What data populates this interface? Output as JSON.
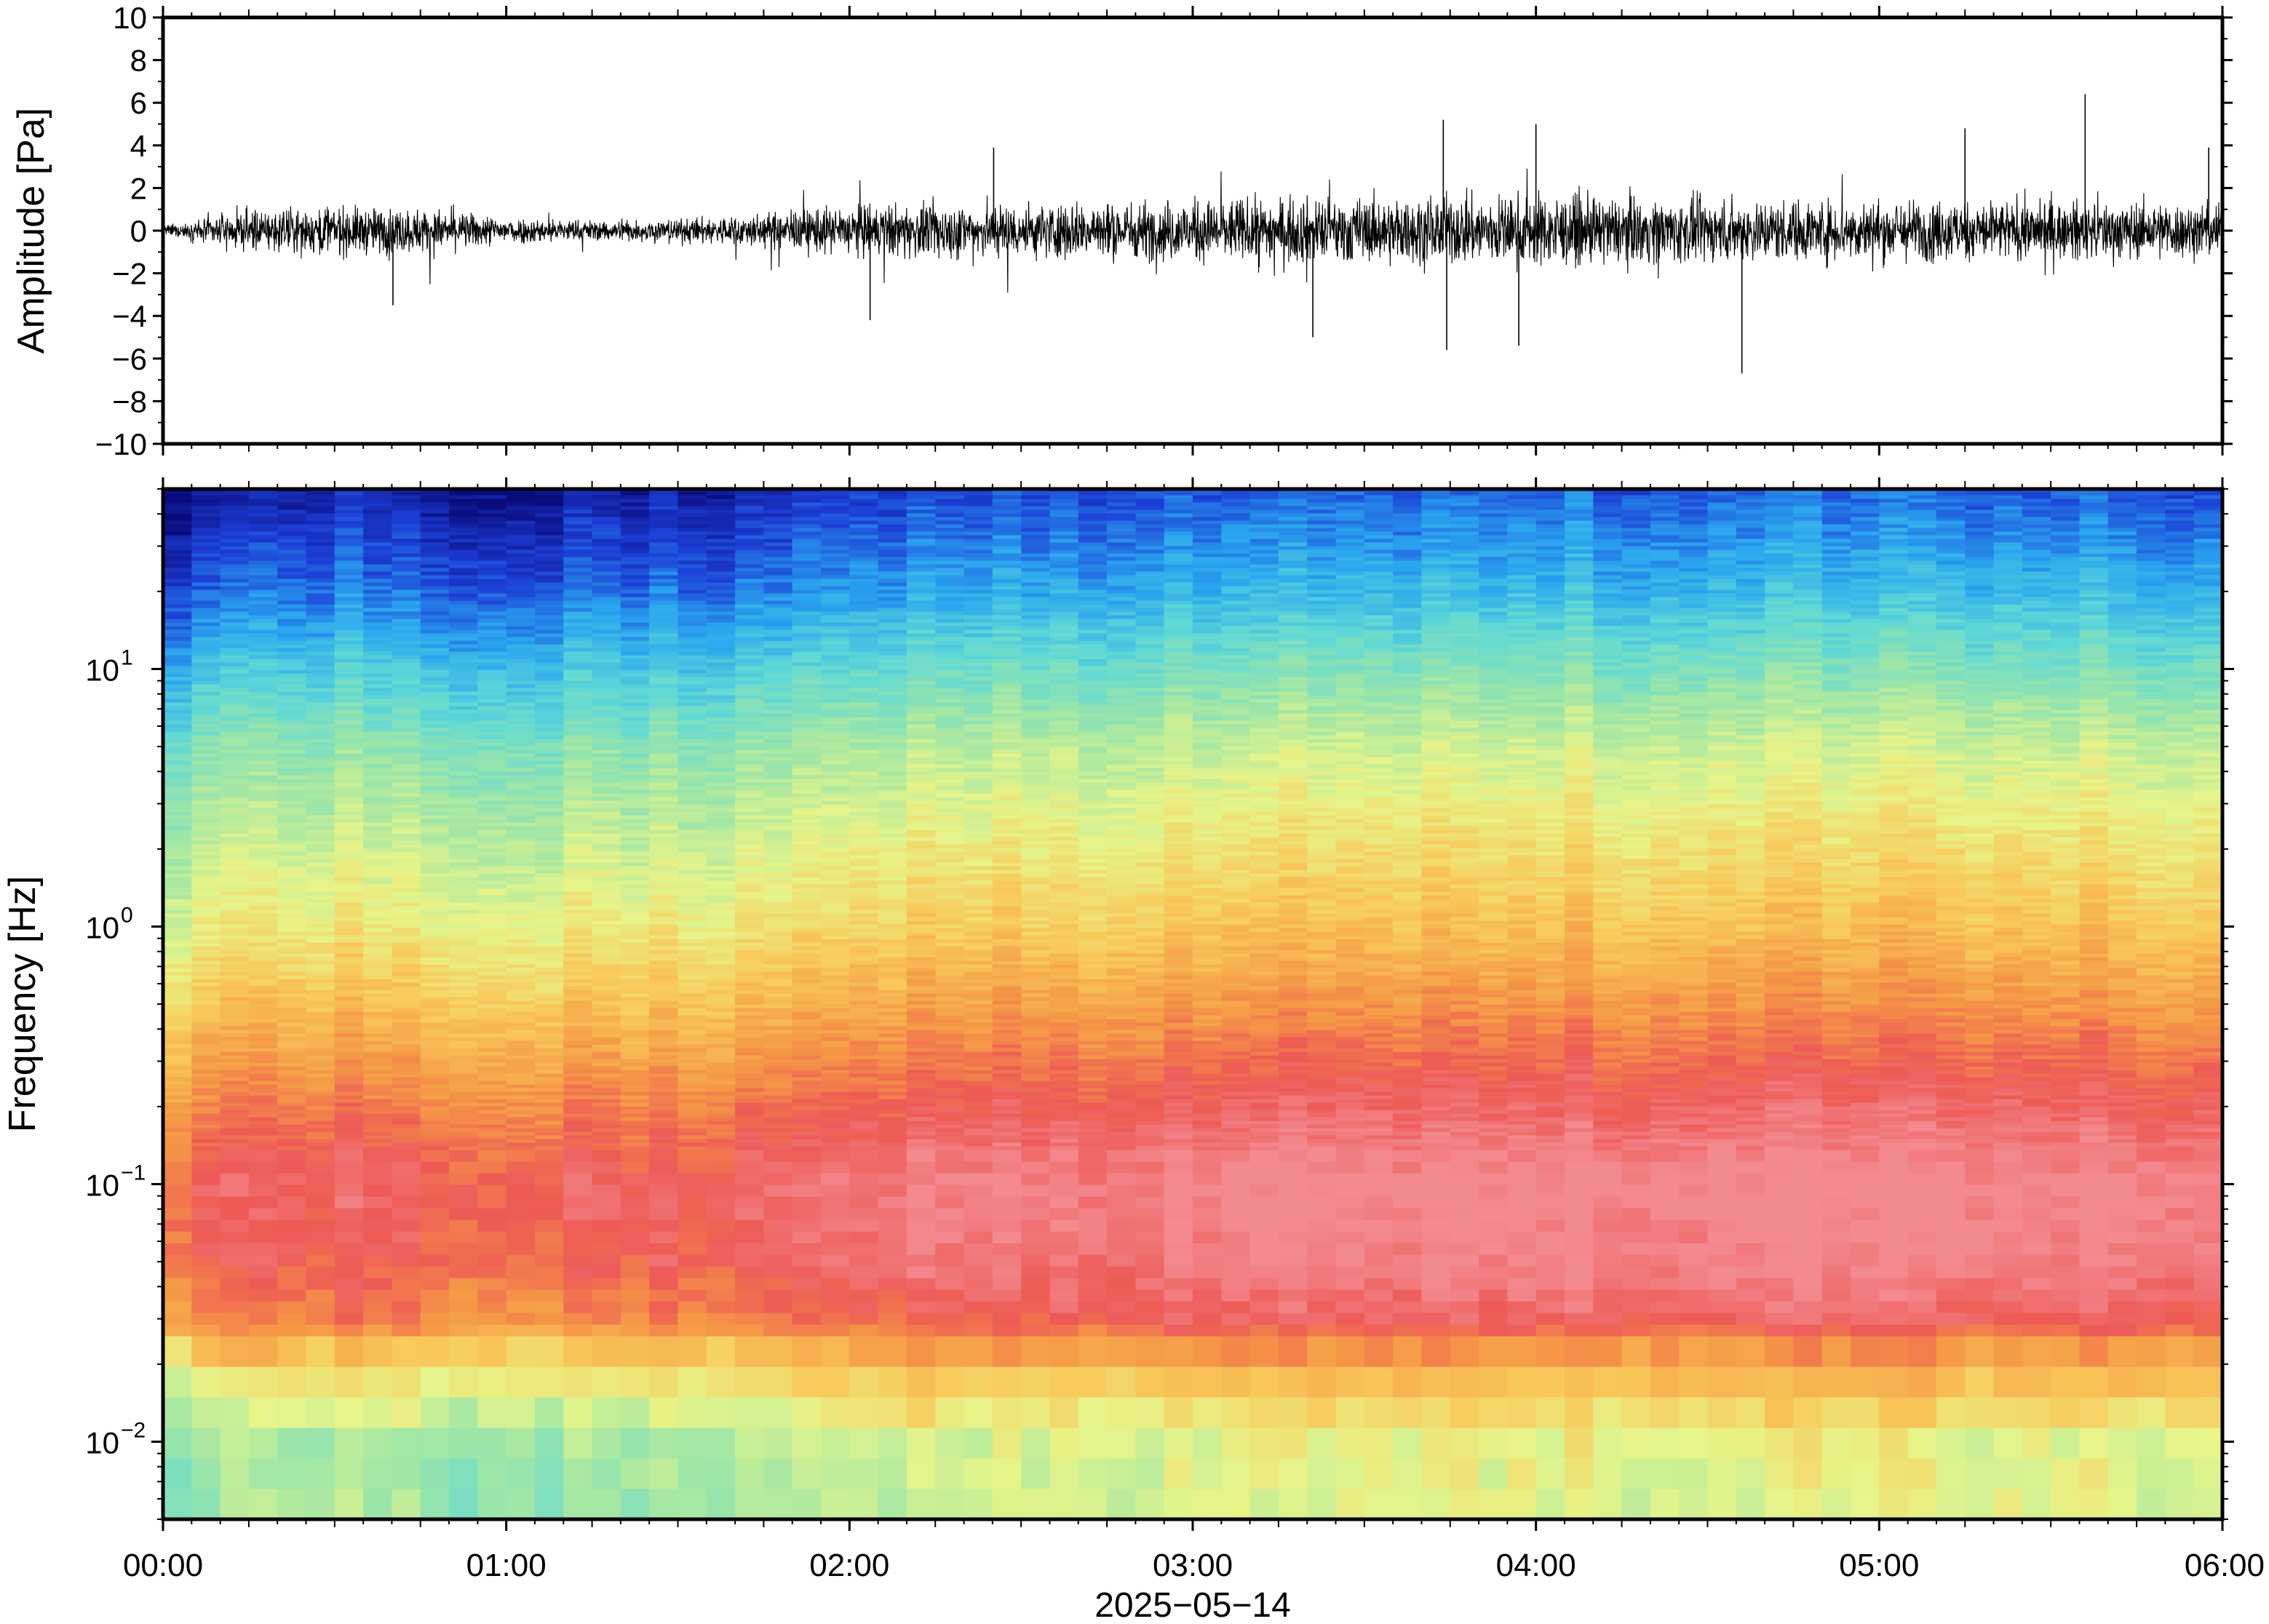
{
  "chart_data": [
    {
      "type": "line",
      "name_hint": "waveform",
      "ylabel": "Amplitude [Pa]",
      "ylim": [
        -10,
        10
      ],
      "yticks": [
        -10,
        -8,
        -6,
        -4,
        -2,
        0,
        2,
        4,
        6,
        8,
        10
      ],
      "ytick_labels": [
        "−10",
        "−8",
        "−6",
        "−4",
        "−2",
        "0",
        "2",
        "4",
        "6",
        "8",
        "10"
      ],
      "xlim_hours": [
        0,
        6
      ],
      "grid": false,
      "envelope": {
        "hours": [
          0.0,
          0.1,
          0.25,
          0.5,
          0.75,
          1.0,
          1.25,
          1.5,
          1.75,
          2.0,
          2.25,
          2.5,
          2.75,
          3.0,
          3.25,
          3.5,
          3.75,
          4.0,
          4.25,
          4.5,
          4.75,
          5.0,
          5.25,
          5.5,
          5.75,
          6.0
        ],
        "typical_abs_pa": [
          0.3,
          0.6,
          1.2,
          1.4,
          1.3,
          0.8,
          0.6,
          0.7,
          1.0,
          1.5,
          1.6,
          1.6,
          1.7,
          1.8,
          1.9,
          1.9,
          2.0,
          2.1,
          1.9,
          1.8,
          1.8,
          1.8,
          1.8,
          1.7,
          1.7,
          1.6
        ]
      },
      "peaks": [
        {
          "hour": 0.67,
          "value": -3.5
        },
        {
          "hour": 2.06,
          "value": -4.2
        },
        {
          "hour": 2.42,
          "value": 3.9
        },
        {
          "hour": 3.35,
          "value": -5.0
        },
        {
          "hour": 3.73,
          "value": 5.2
        },
        {
          "hour": 3.74,
          "value": -5.6
        },
        {
          "hour": 3.95,
          "value": -5.4
        },
        {
          "hour": 4.0,
          "value": 5.0
        },
        {
          "hour": 4.6,
          "value": -6.7
        },
        {
          "hour": 5.25,
          "value": 4.8
        },
        {
          "hour": 5.6,
          "value": 6.4
        },
        {
          "hour": 5.96,
          "value": 3.9
        }
      ]
    },
    {
      "type": "heatmap",
      "name_hint": "spectrogram",
      "ylabel": "Frequency [Hz]",
      "yscale": "log",
      "ylim_hz": [
        0.005,
        50
      ],
      "yticks_hz": [
        0.01,
        0.1,
        1,
        10
      ],
      "ytick_labels": [
        {
          "base": "10",
          "exp": "−2"
        },
        {
          "base": "10",
          "exp": "−1"
        },
        {
          "base": "10",
          "exp": "0"
        },
        {
          "base": "10",
          "exp": "1"
        }
      ],
      "xticks_hours": [
        0,
        1,
        2,
        3,
        4,
        5,
        6
      ],
      "xtick_labels": [
        "00:00",
        "01:00",
        "02:00",
        "03:00",
        "04:00",
        "05:00",
        "06:00"
      ],
      "xlabel": "2025−05−14",
      "colormap": [
        "#0a0a7a",
        "#1c3fd6",
        "#2aa6ef",
        "#5fd9d6",
        "#9fe6a6",
        "#e7f58a",
        "#f8c95a",
        "#f59a46",
        "#ee5a55",
        "#f28a90"
      ],
      "colormap_note": "dark blue = low power, pink = highest power",
      "level_profile": {
        "freq_hz": [
          0.005,
          0.01,
          0.02,
          0.03,
          0.05,
          0.1,
          0.2,
          0.5,
          1,
          2,
          5,
          10,
          20,
          50
        ],
        "level": [
          0.48,
          0.5,
          0.67,
          0.85,
          0.92,
          0.95,
          0.86,
          0.72,
          0.62,
          0.55,
          0.45,
          0.33,
          0.2,
          0.08
        ]
      },
      "time_modulation": {
        "hours": [
          0,
          0.1,
          0.5,
          1.0,
          1.5,
          2.0,
          3.0,
          4.0,
          5.0,
          6.0
        ],
        "offset": [
          -0.15,
          -0.06,
          -0.02,
          -0.05,
          -0.04,
          0.02,
          0.05,
          0.07,
          0.07,
          0.06
        ]
      }
    }
  ]
}
